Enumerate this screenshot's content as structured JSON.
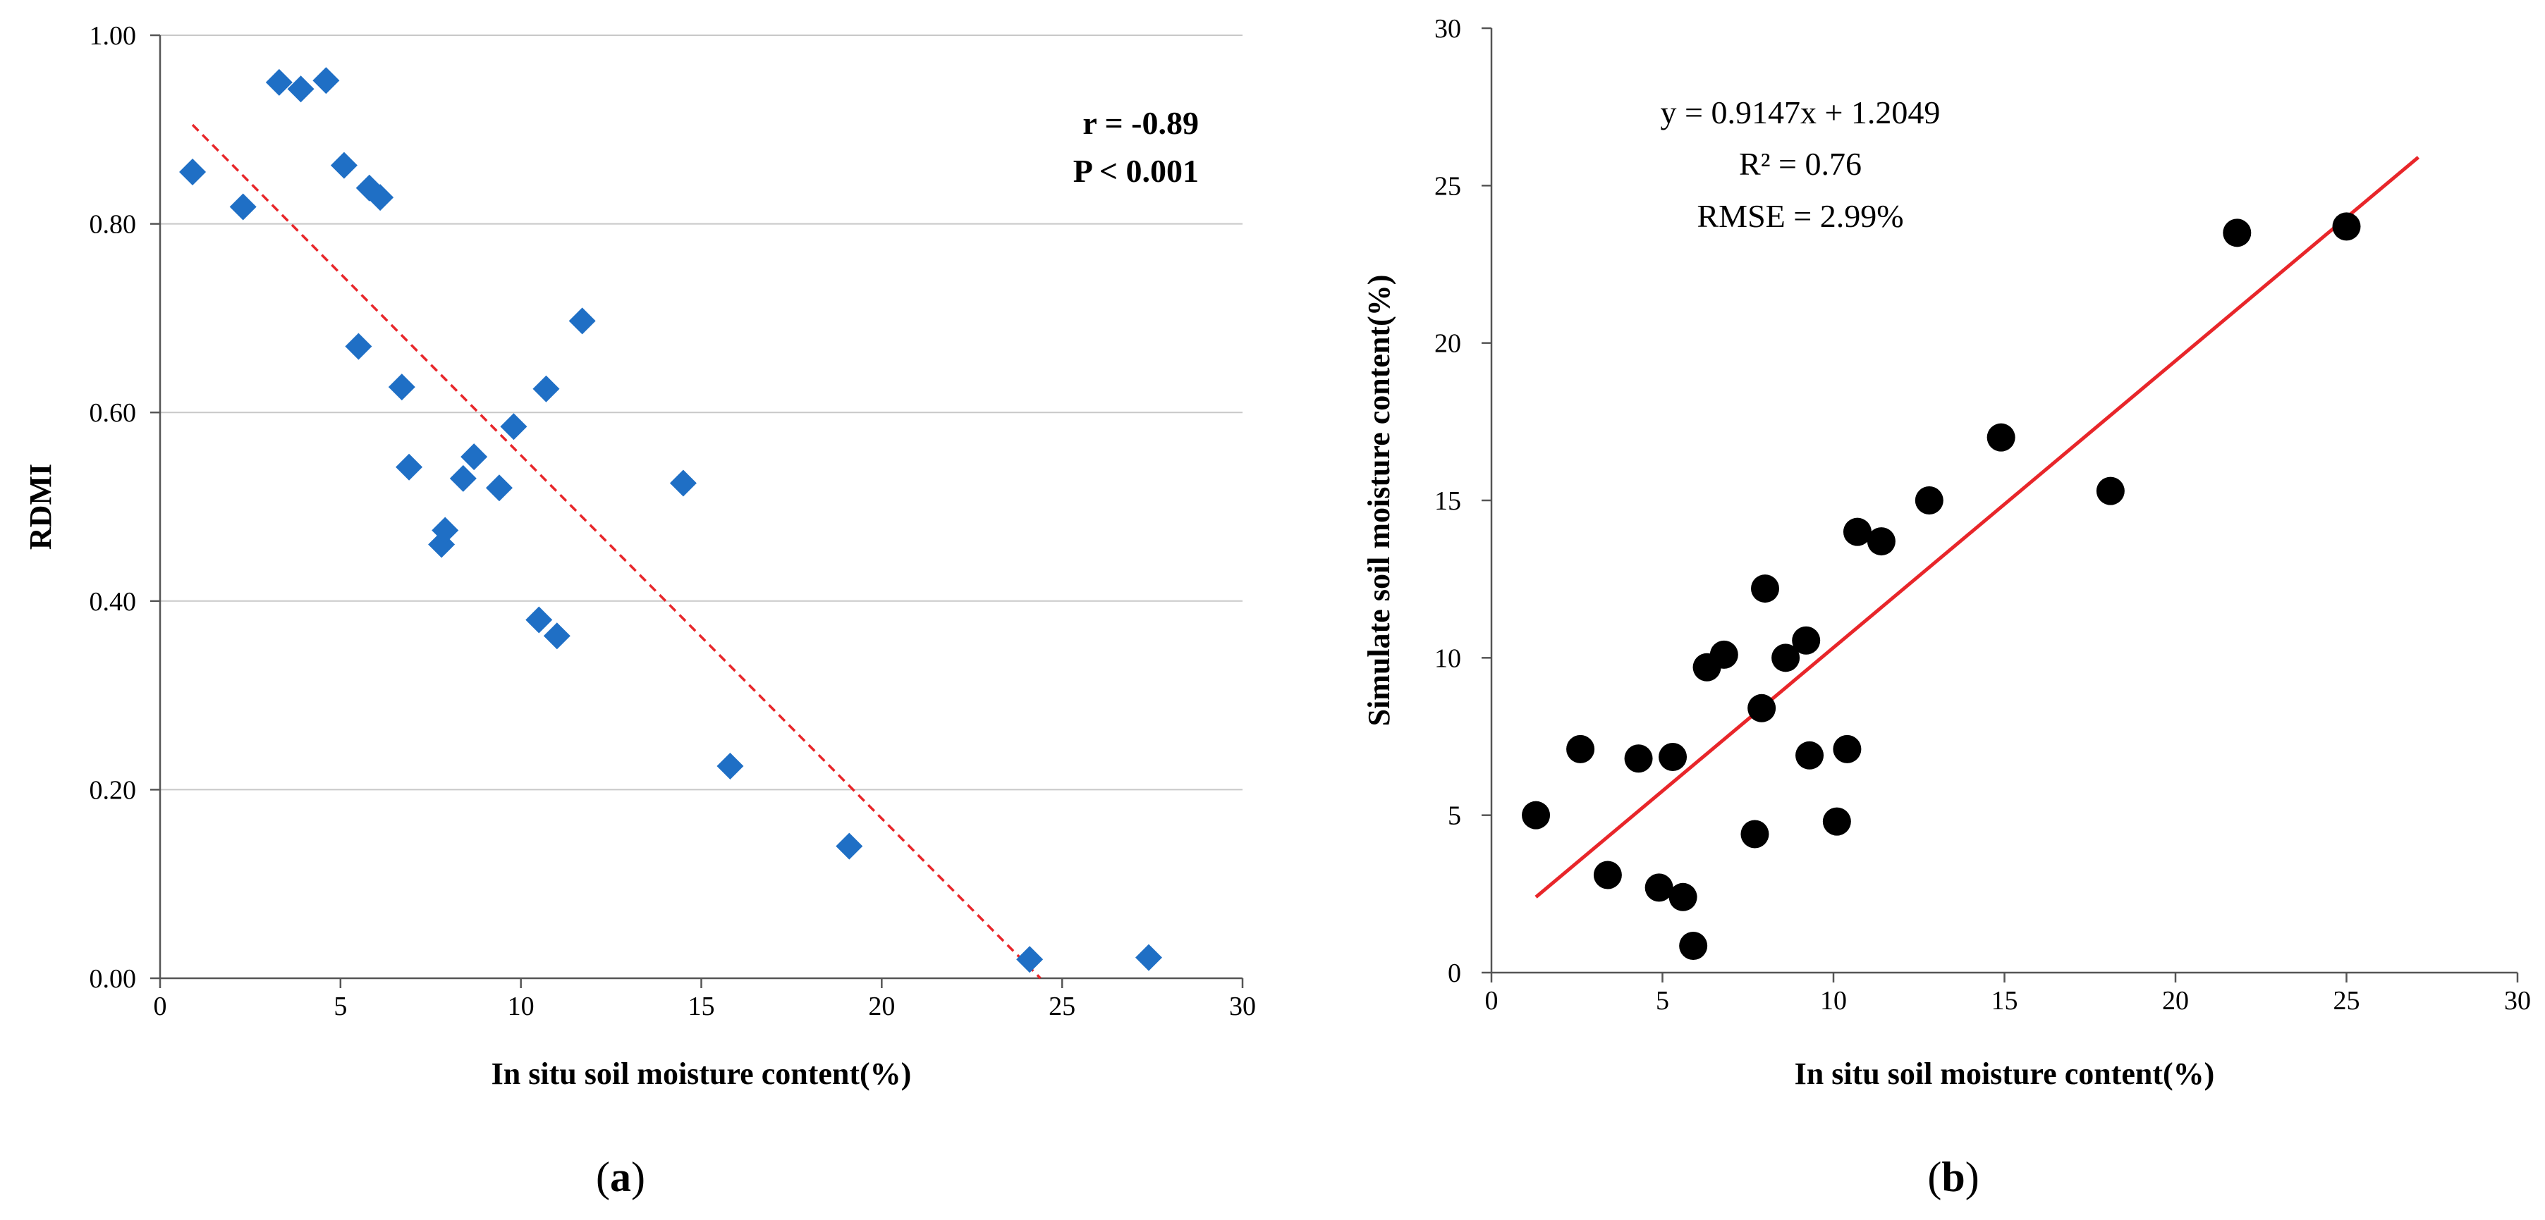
{
  "chart_data": [
    {
      "type": "scatter",
      "panel_label_parts": [
        "(",
        "a",
        ")"
      ],
      "xlabel": "In situ soil moisture content(%)",
      "ylabel": "RDMI",
      "xlim": [
        0,
        30
      ],
      "ylim": [
        0,
        1
      ],
      "x_ticks": [
        0,
        5,
        10,
        15,
        20,
        25,
        30
      ],
      "y_ticks": [
        0,
        0.2,
        0.4,
        0.6,
        0.8,
        1.0
      ],
      "y_tick_labels": [
        "0.00",
        "0.20",
        "0.40",
        "0.60",
        "0.80",
        "1.00"
      ],
      "grid": "horizontal",
      "marker": "diamond",
      "marker_color": "#1F6FC5",
      "trendline_color": "#E8262A",
      "trendline_style": "dashed",
      "trendline": {
        "x": [
          0.9,
          24.4
        ],
        "y": [
          0.905,
          0.0
        ]
      },
      "annotations": [
        "r = -0.89",
        "P < 0.001"
      ],
      "points": [
        {
          "x": 0.9,
          "y": 0.855
        },
        {
          "x": 2.3,
          "y": 0.818
        },
        {
          "x": 3.3,
          "y": 0.95
        },
        {
          "x": 3.9,
          "y": 0.943
        },
        {
          "x": 4.6,
          "y": 0.952
        },
        {
          "x": 5.1,
          "y": 0.862
        },
        {
          "x": 5.5,
          "y": 0.67
        },
        {
          "x": 5.8,
          "y": 0.838
        },
        {
          "x": 6.1,
          "y": 0.828
        },
        {
          "x": 6.7,
          "y": 0.627
        },
        {
          "x": 6.9,
          "y": 0.542
        },
        {
          "x": 7.8,
          "y": 0.46
        },
        {
          "x": 7.9,
          "y": 0.475
        },
        {
          "x": 8.4,
          "y": 0.53
        },
        {
          "x": 8.7,
          "y": 0.553
        },
        {
          "x": 9.4,
          "y": 0.52
        },
        {
          "x": 9.8,
          "y": 0.585
        },
        {
          "x": 10.5,
          "y": 0.38
        },
        {
          "x": 10.7,
          "y": 0.625
        },
        {
          "x": 11.0,
          "y": 0.363
        },
        {
          "x": 11.7,
          "y": 0.697
        },
        {
          "x": 14.5,
          "y": 0.525
        },
        {
          "x": 15.8,
          "y": 0.225
        },
        {
          "x": 19.1,
          "y": 0.14
        },
        {
          "x": 24.1,
          "y": 0.02
        },
        {
          "x": 27.4,
          "y": 0.022
        }
      ]
    },
    {
      "type": "scatter",
      "panel_label_parts": [
        "(",
        "b",
        ")"
      ],
      "xlabel": "In situ soil moisture content(%)",
      "ylabel": "Simulate soil moisture content(%)",
      "xlim": [
        0,
        30
      ],
      "ylim": [
        0,
        30
      ],
      "x_ticks": [
        0,
        5,
        10,
        15,
        20,
        25,
        30
      ],
      "y_ticks": [
        0,
        5,
        10,
        15,
        20,
        25,
        30
      ],
      "y_tick_labels": [
        "0",
        "5",
        "10",
        "15",
        "20",
        "25",
        "30"
      ],
      "grid": "none",
      "marker": "circle",
      "marker_color": "#000000",
      "trendline_color": "#E8262A",
      "trendline_style": "solid",
      "trendline": {
        "x": [
          1.3,
          27.1
        ],
        "y": [
          2.4,
          25.9
        ]
      },
      "annotations": [
        "y = 0.9147x + 1.2049",
        "R² = 0.76",
        "RMSE = 2.99%"
      ],
      "points": [
        {
          "x": 1.3,
          "y": 5.0
        },
        {
          "x": 2.6,
          "y": 7.1
        },
        {
          "x": 3.4,
          "y": 3.1
        },
        {
          "x": 4.3,
          "y": 6.8
        },
        {
          "x": 4.9,
          "y": 2.7
        },
        {
          "x": 5.3,
          "y": 6.85
        },
        {
          "x": 5.6,
          "y": 2.4
        },
        {
          "x": 5.9,
          "y": 0.85
        },
        {
          "x": 6.3,
          "y": 9.7
        },
        {
          "x": 6.8,
          "y": 10.1
        },
        {
          "x": 7.7,
          "y": 4.4
        },
        {
          "x": 7.9,
          "y": 8.4
        },
        {
          "x": 8.0,
          "y": 12.2
        },
        {
          "x": 8.6,
          "y": 10.0
        },
        {
          "x": 9.2,
          "y": 10.55
        },
        {
          "x": 9.3,
          "y": 6.9
        },
        {
          "x": 10.1,
          "y": 4.8
        },
        {
          "x": 10.4,
          "y": 7.1
        },
        {
          "x": 10.7,
          "y": 14.0
        },
        {
          "x": 11.4,
          "y": 13.7
        },
        {
          "x": 12.8,
          "y": 15.0
        },
        {
          "x": 14.9,
          "y": 17.0
        },
        {
          "x": 18.1,
          "y": 15.3
        },
        {
          "x": 21.8,
          "y": 23.5
        },
        {
          "x": 25.0,
          "y": 23.7
        }
      ]
    }
  ]
}
